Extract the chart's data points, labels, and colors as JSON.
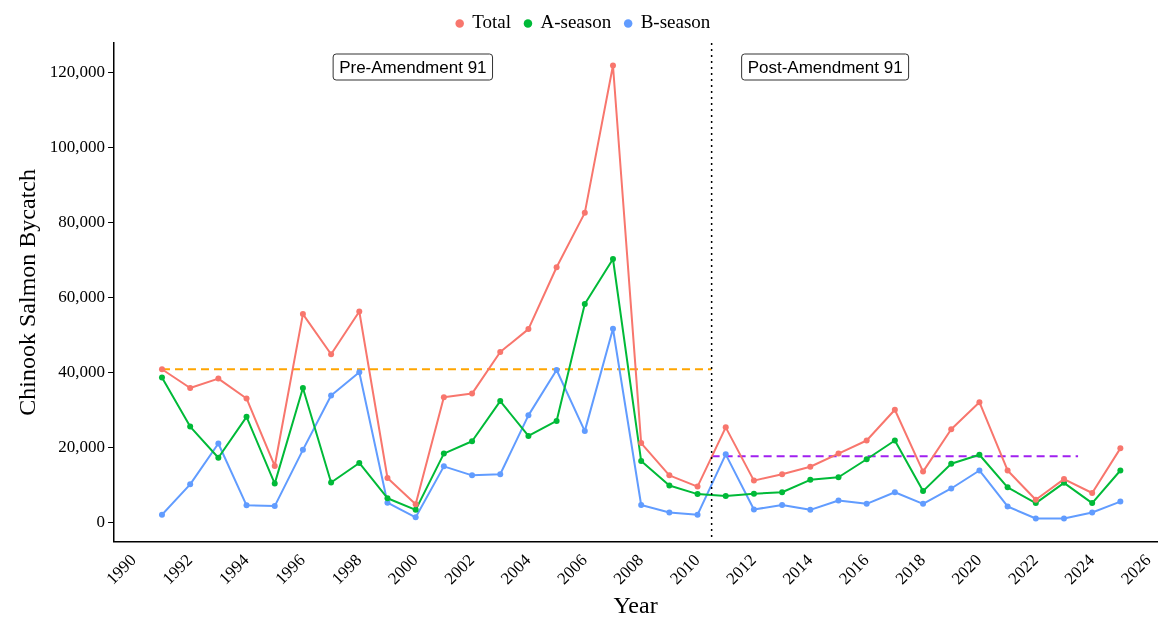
{
  "chart_data": {
    "type": "line",
    "xlabel": "Year",
    "ylabel": "Chinook Salmon Bycatch",
    "x": [
      1991,
      1992,
      1993,
      1994,
      1995,
      1996,
      1997,
      1998,
      1999,
      2000,
      2001,
      2002,
      2003,
      2004,
      2005,
      2006,
      2007,
      2008,
      2009,
      2010,
      2011,
      2012,
      2013,
      2014,
      2015,
      2016,
      2017,
      2018,
      2019,
      2020,
      2021,
      2022,
      2023,
      2024,
      2025
    ],
    "series": [
      {
        "name": "Total",
        "color": "#f8766d",
        "values": [
          41000,
          36000,
          38500,
          33200,
          15200,
          55700,
          45000,
          56400,
          12000,
          5000,
          33500,
          34500,
          45600,
          51700,
          68200,
          82700,
          122000,
          21300,
          12700,
          9700,
          25500,
          11300,
          13000,
          15000,
          18500,
          22000,
          30200,
          13700,
          25000,
          32200,
          14000,
          6200,
          11700,
          8000,
          19900
        ]
      },
      {
        "name": "A-season",
        "color": "#00ba38",
        "values": [
          38800,
          25700,
          17400,
          28300,
          10500,
          36000,
          10800,
          16000,
          6600,
          3500,
          18500,
          21800,
          32500,
          23200,
          27200,
          58400,
          70400,
          16500,
          10000,
          7700,
          7200,
          7800,
          8200,
          11500,
          12200,
          17000,
          22000,
          8500,
          15800,
          18200,
          9500,
          5300,
          10700,
          5300,
          14000
        ]
      },
      {
        "name": "B-season",
        "color": "#619cff",
        "values": [
          2200,
          10300,
          21200,
          4700,
          4500,
          19500,
          34000,
          40200,
          5400,
          1500,
          15100,
          12700,
          13000,
          28700,
          40800,
          24500,
          51800,
          4800,
          2800,
          2200,
          18300,
          3600,
          4800,
          3500,
          6000,
          5100,
          8200,
          5100,
          9200,
          14000,
          4400,
          1200,
          1200,
          2800,
          5700
        ]
      },
      {
        "type": "line",
        "x": [
          1991,
          2010.5
        ],
        "values": [
          41000,
          41000
        ],
        "color": "#ffa500",
        "line_style": "dashed",
        "marker": "none"
      },
      {
        "type": "line",
        "x": [
          2010.5,
          2023.5
        ],
        "values": [
          17800,
          17800
        ],
        "color": "#a020f0",
        "line_style": "dashed",
        "marker": "none"
      }
    ],
    "ref_lines": [
      {
        "axis": "x",
        "value": 2010.5,
        "color": "#000000",
        "line_style": "dotted"
      }
    ],
    "annotations": [
      "Pre-Amendment 91",
      "Post-Amendment 91"
    ],
    "xlim": [
      1989.3,
      2026.3
    ],
    "xticks": [
      1990,
      1992,
      1994,
      1996,
      1998,
      2000,
      2002,
      2004,
      2006,
      2008,
      2010,
      2012,
      2014,
      2016,
      2018,
      2020,
      2022,
      2024,
      2026
    ],
    "ylim": [
      -5000,
      128000
    ],
    "yticks": [
      {
        "value": 0,
        "label": "0"
      },
      {
        "value": 20000,
        "label": "20,000"
      },
      {
        "value": 40000,
        "label": "40,000"
      },
      {
        "value": 60000,
        "label": "60,000"
      },
      {
        "value": 80000,
        "label": "80,000"
      },
      {
        "value": 100000,
        "label": "100,000"
      },
      {
        "value": 120000,
        "label": "120,000"
      }
    ],
    "grid": false,
    "legend": "top",
    "marker": "circle",
    "line_style": "solid"
  }
}
